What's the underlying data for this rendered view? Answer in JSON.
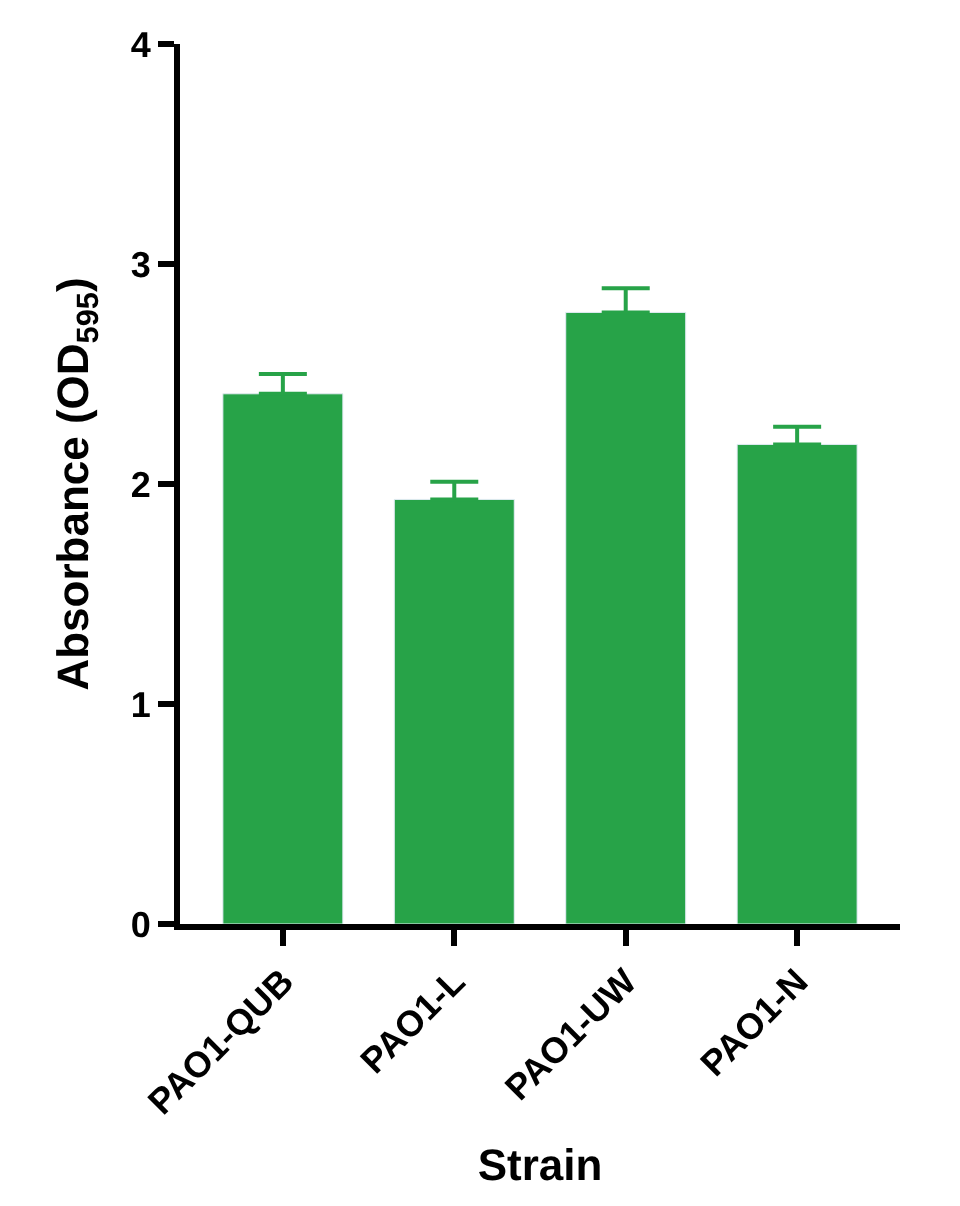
{
  "chart_data": {
    "type": "bar",
    "xlabel": "Strain",
    "ylabel": "Absorbance (OD$_{595}$)",
    "categories": [
      "PAO1-QUB",
      "PAO1-L",
      "PAO1-UW",
      "PAO1-N"
    ],
    "values": [
      2.41,
      1.93,
      2.78,
      2.18
    ],
    "errors": [
      [
        2.41,
        2.5
      ],
      [
        1.93,
        2.01
      ],
      [
        2.78,
        2.89
      ],
      [
        2.18,
        2.26
      ]
    ],
    "color": "#27a348",
    "ylim": [
      0,
      4
    ],
    "yticks": [
      0,
      1,
      2,
      3,
      4
    ]
  }
}
